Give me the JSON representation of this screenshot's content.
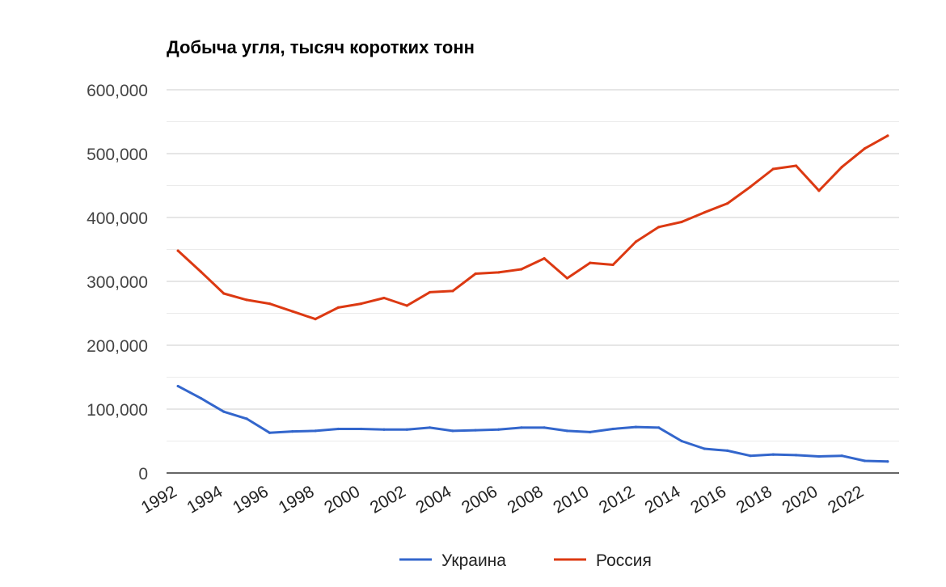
{
  "chart_data": {
    "type": "line",
    "title": "Добыча угля, тысяч коротких тонн",
    "xlabel": "",
    "ylabel": "",
    "x": [
      1992,
      1993,
      1994,
      1995,
      1996,
      1997,
      1998,
      1999,
      2000,
      2001,
      2002,
      2003,
      2004,
      2005,
      2006,
      2007,
      2008,
      2009,
      2010,
      2011,
      2012,
      2013,
      2014,
      2015,
      2016,
      2017,
      2018,
      2019,
      2020,
      2021,
      2022,
      2023
    ],
    "x_tick_labels": [
      "1992",
      "1994",
      "1996",
      "1998",
      "2000",
      "2002",
      "2004",
      "2006",
      "2008",
      "2010",
      "2012",
      "2014",
      "2016",
      "2018",
      "2020",
      "2022"
    ],
    "x_tick_values": [
      1992,
      1994,
      1996,
      1998,
      2000,
      2002,
      2004,
      2006,
      2008,
      2010,
      2012,
      2014,
      2016,
      2018,
      2020,
      2022
    ],
    "ylim": [
      0,
      600000
    ],
    "y_ticks": [
      0,
      100000,
      200000,
      300000,
      400000,
      500000,
      600000
    ],
    "y_tick_labels": [
      "0",
      "100,000",
      "200,000",
      "300,000",
      "400,000",
      "500,000",
      "600,000"
    ],
    "grid": true,
    "legend_position": "bottom",
    "series": [
      {
        "name": "Украина",
        "color": "#3366cc",
        "values": [
          136000,
          117000,
          96000,
          85000,
          63000,
          65000,
          66000,
          69000,
          69000,
          68000,
          68000,
          71000,
          66000,
          67000,
          68000,
          71000,
          71000,
          66000,
          64000,
          69000,
          72000,
          71000,
          50000,
          38000,
          35000,
          27000,
          29000,
          28000,
          26000,
          27000,
          19000,
          18000
        ]
      },
      {
        "name": "Россия",
        "color": "#dc3912",
        "values": [
          348000,
          315000,
          281000,
          271000,
          265000,
          253000,
          241000,
          259000,
          265000,
          274000,
          262000,
          283000,
          285000,
          312000,
          314000,
          319000,
          336000,
          305000,
          329000,
          326000,
          362000,
          385000,
          393000,
          408000,
          422000,
          448000,
          476000,
          481000,
          442000,
          479000,
          508000,
          528000
        ]
      }
    ]
  }
}
